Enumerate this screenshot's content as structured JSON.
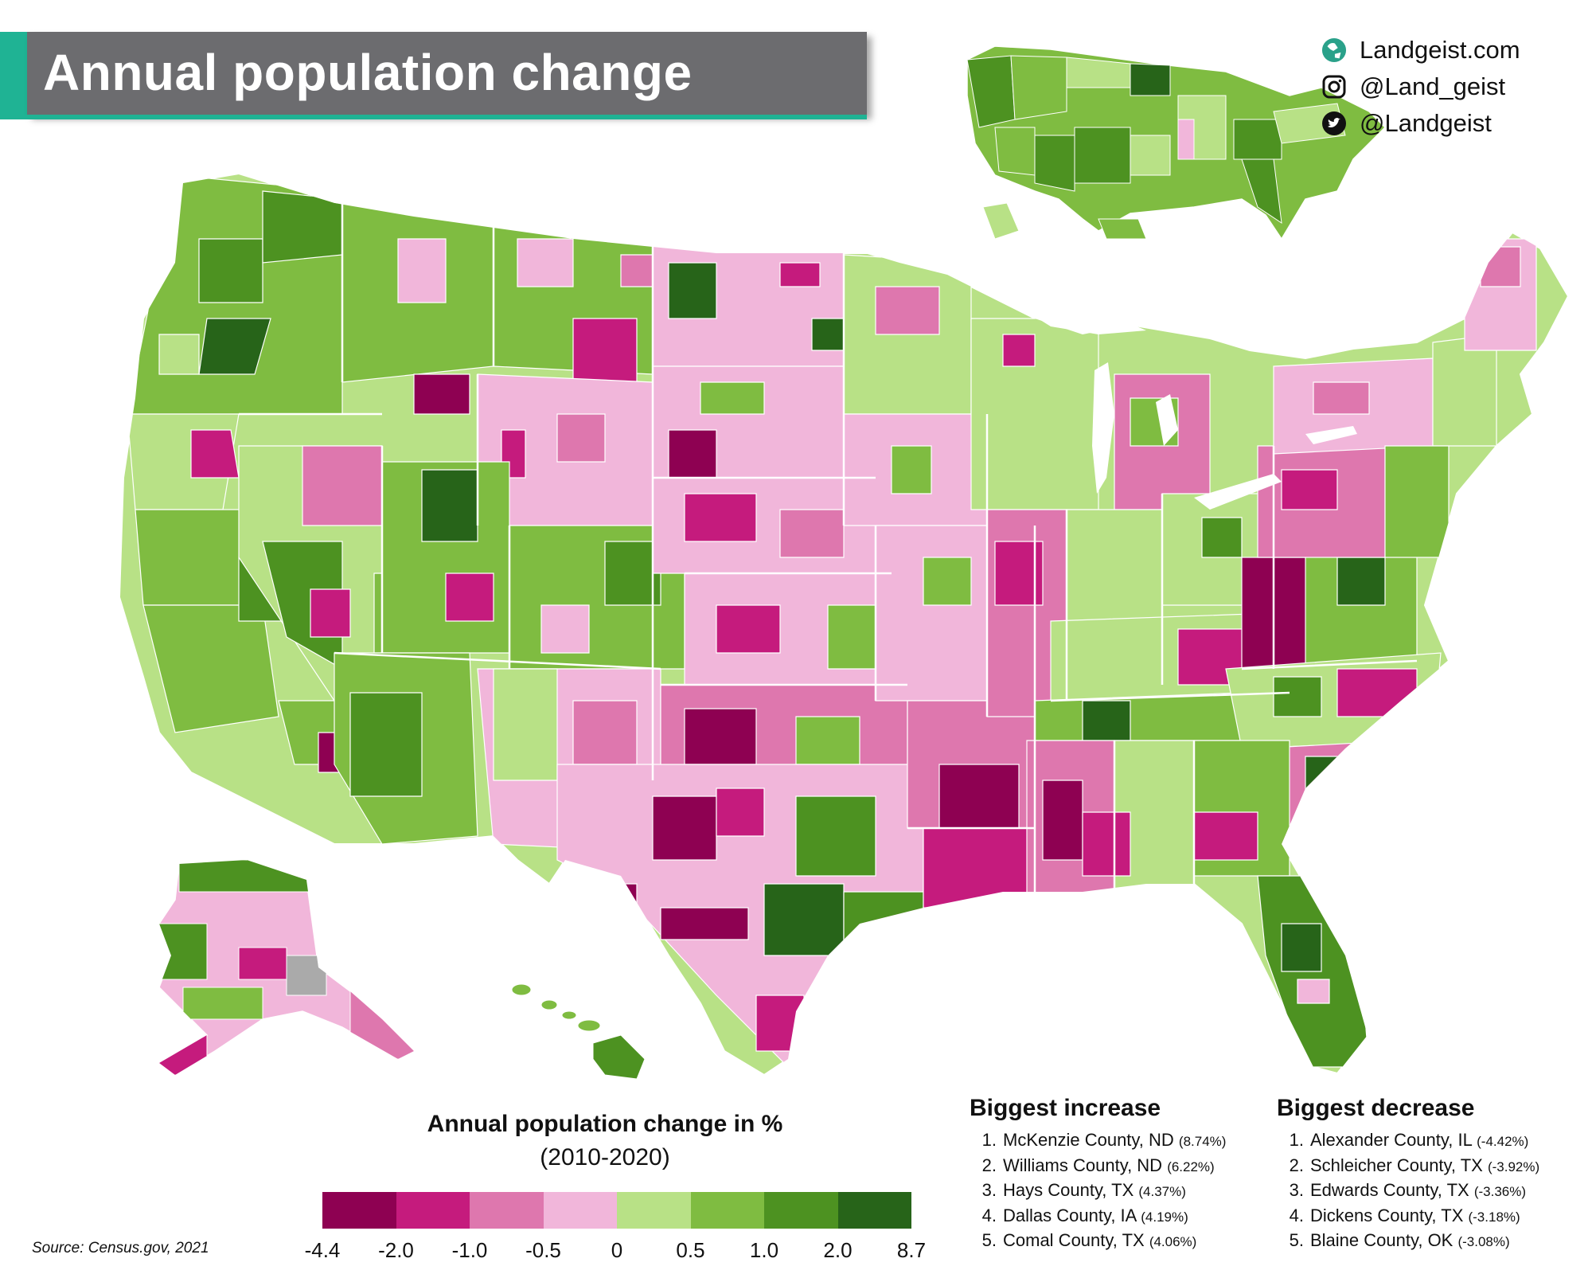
{
  "title": "Annual population change",
  "branding": {
    "website": "Landgeist.com",
    "instagram": "@Land_geist",
    "twitter": "@Landgeist",
    "icons": [
      "globe-icon",
      "instagram-icon",
      "twitter-icon"
    ]
  },
  "legend": {
    "title": "Annual population change in %",
    "subtitle": "(2010-2020)",
    "breaks": [
      "-4.4",
      "-2.0",
      "-1.0",
      "-0.5",
      "0",
      "0.5",
      "1.0",
      "2.0",
      "8.7"
    ],
    "colors": [
      "#8e0152",
      "#c51b7d",
      "#de77ae",
      "#f1b6da",
      "#b8e186",
      "#7fbc41",
      "#4d9221",
      "#276419"
    ],
    "no_data_color": "#aaaaaa"
  },
  "source": "Source: Census.gov, 2021",
  "biggest_increase": {
    "heading": "Biggest increase",
    "items": [
      {
        "rank": "1.",
        "name": "McKenzie County, ND",
        "value": "(8.74%)"
      },
      {
        "rank": "2.",
        "name": "Williams County, ND",
        "value": "(6.22%)"
      },
      {
        "rank": "3.",
        "name": "Hays County, TX",
        "value": "(4.37%)"
      },
      {
        "rank": "4.",
        "name": "Dallas County, IA",
        "value": "(4.19%)"
      },
      {
        "rank": "5.",
        "name": "Comal County, TX",
        "value": "(4.06%)"
      }
    ]
  },
  "biggest_decrease": {
    "heading": "Biggest decrease",
    "items": [
      {
        "rank": "1.",
        "name": "Alexander County, IL",
        "value": "(-4.42%)"
      },
      {
        "rank": "2.",
        "name": "Schleicher County, TX",
        "value": "(-3.92%)"
      },
      {
        "rank": "3.",
        "name": "Edwards County, TX",
        "value": "(-3.36%)"
      },
      {
        "rank": "4.",
        "name": "Dickens County, TX",
        "value": "(-3.18%)"
      },
      {
        "rank": "5.",
        "name": "Blaine County, OK",
        "value": "(-3.08%)"
      }
    ]
  }
}
